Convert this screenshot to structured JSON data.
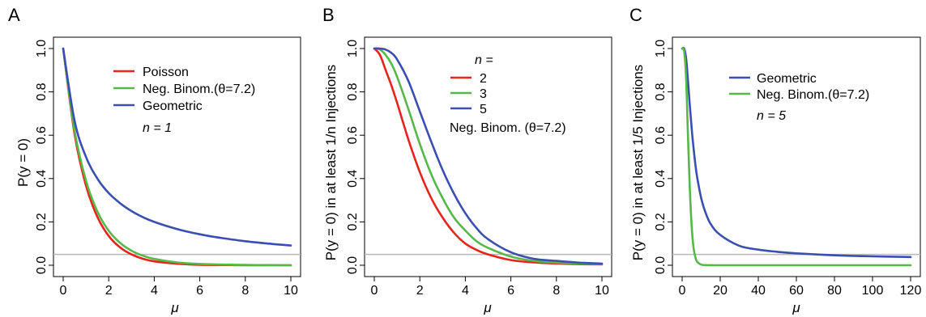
{
  "colors": {
    "poisson": "#e8231c",
    "negbinom": "#55b848",
    "geometric": "#3a4fb0",
    "reference": "#b8b8b8"
  },
  "chart_data": [
    {
      "panel": "A",
      "type": "line",
      "xlabel": "μ",
      "ylabel": "P(y = 0)",
      "xlim": [
        0,
        10
      ],
      "ylim": [
        0,
        1
      ],
      "xticks": [
        "0",
        "2",
        "4",
        "6",
        "8",
        "10"
      ],
      "yticks": [
        "0.0",
        "0.2",
        "0.4",
        "0.6",
        "0.8",
        "1.0"
      ],
      "reference_y": 0.05,
      "legend_header": "",
      "legend_note": "n = 1",
      "x": [
        0,
        0.5,
        1,
        1.5,
        2,
        2.5,
        3,
        3.5,
        4,
        5,
        6,
        7,
        8,
        9,
        10
      ],
      "series": [
        {
          "name": "Poisson",
          "color": "poisson",
          "values": [
            1.0,
            0.607,
            0.368,
            0.223,
            0.135,
            0.082,
            0.05,
            0.03,
            0.018,
            0.007,
            0.002,
            0.001,
            0.0003,
            0.0001,
            5e-05
          ]
        },
        {
          "name": "Neg. Binom.(θ=7.2)",
          "color": "negbinom",
          "values": [
            1.0,
            0.621,
            0.391,
            0.248,
            0.159,
            0.103,
            0.067,
            0.044,
            0.029,
            0.013,
            0.006,
            0.003,
            0.0015,
            0.0007,
            0.0004
          ]
        },
        {
          "name": "Geometric",
          "color": "geometric",
          "values": [
            1.0,
            0.667,
            0.5,
            0.4,
            0.333,
            0.286,
            0.25,
            0.222,
            0.2,
            0.167,
            0.143,
            0.125,
            0.111,
            0.1,
            0.091
          ]
        }
      ]
    },
    {
      "panel": "B",
      "type": "line",
      "xlabel": "μ",
      "ylabel": "P(y = 0) in at least 1/n Injections",
      "xlim": [
        0,
        10
      ],
      "ylim": [
        0,
        1
      ],
      "xticks": [
        "0",
        "2",
        "4",
        "6",
        "8",
        "10"
      ],
      "yticks": [
        "0.0",
        "0.2",
        "0.4",
        "0.6",
        "0.8",
        "1.0"
      ],
      "reference_y": 0.05,
      "legend_header": "n =",
      "legend_note": "Neg. Binom. (θ=7.2)",
      "x": [
        0,
        0.25,
        0.5,
        0.75,
        1,
        1.5,
        2,
        2.5,
        3,
        3.5,
        4,
        4.5,
        5,
        6,
        7,
        8,
        9,
        10
      ],
      "series": [
        {
          "name": "2",
          "color": "poisson",
          "values": [
            1.0,
            0.97,
            0.9,
            0.83,
            0.75,
            0.58,
            0.43,
            0.31,
            0.22,
            0.15,
            0.1,
            0.07,
            0.05,
            0.024,
            0.013,
            0.008,
            0.005,
            0.004
          ]
        },
        {
          "name": "3",
          "color": "negbinom",
          "values": [
            1.0,
            0.995,
            0.97,
            0.93,
            0.87,
            0.72,
            0.56,
            0.42,
            0.31,
            0.22,
            0.16,
            0.11,
            0.08,
            0.04,
            0.02,
            0.012,
            0.008,
            0.006
          ]
        },
        {
          "name": "5",
          "color": "geometric",
          "values": [
            1.0,
            1.0,
            0.995,
            0.98,
            0.95,
            0.85,
            0.71,
            0.57,
            0.44,
            0.33,
            0.24,
            0.17,
            0.12,
            0.06,
            0.03,
            0.02,
            0.012,
            0.008
          ]
        }
      ]
    },
    {
      "panel": "C",
      "type": "line",
      "xlabel": "μ",
      "ylabel": "P(y = 0) in at least 1/5 Injections",
      "xlim": [
        0,
        120
      ],
      "ylim": [
        0,
        1
      ],
      "xticks": [
        "0",
        "20",
        "40",
        "60",
        "80",
        "100",
        "120"
      ],
      "yticks": [
        "0.0",
        "0.2",
        "0.4",
        "0.6",
        "0.8",
        "1.0"
      ],
      "reference_y": 0.05,
      "legend_header": "",
      "legend_note": "n = 5",
      "x": [
        0,
        1,
        2,
        3,
        4,
        5,
        6,
        7,
        8,
        10,
        12,
        15,
        20,
        30,
        40,
        50,
        60,
        80,
        100,
        120
      ],
      "series": [
        {
          "name": "Geometric",
          "color": "geometric",
          "values": [
            1.0,
            1.0,
            0.96,
            0.86,
            0.74,
            0.63,
            0.54,
            0.46,
            0.4,
            0.31,
            0.25,
            0.19,
            0.14,
            0.09,
            0.072,
            0.062,
            0.055,
            0.046,
            0.041,
            0.038
          ]
        },
        {
          "name": "Neg. Binom.(θ=7.2)",
          "color": "negbinom",
          "values": [
            1.0,
            0.99,
            0.88,
            0.62,
            0.36,
            0.18,
            0.08,
            0.035,
            0.015,
            0.003,
            0.0008,
            0.0002,
            0.0,
            0.0,
            0.0,
            0.0,
            0.0,
            0.0,
            0.0,
            0.0
          ]
        }
      ]
    }
  ]
}
